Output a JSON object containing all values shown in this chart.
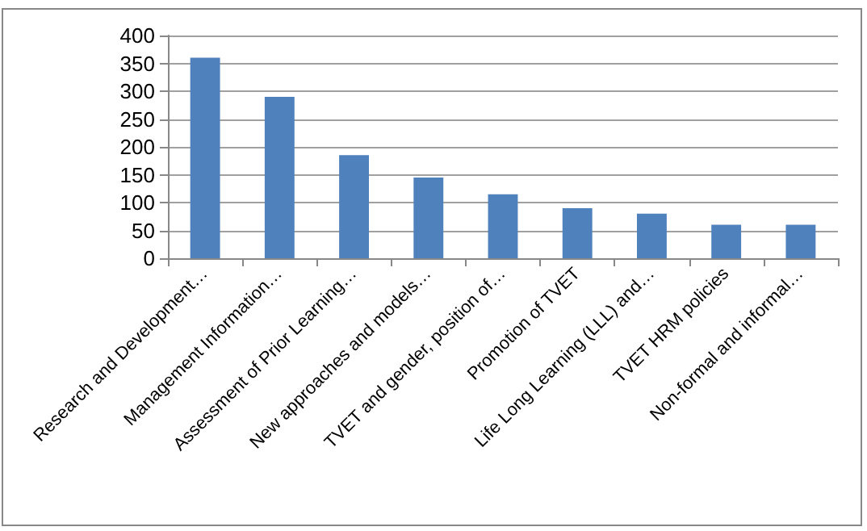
{
  "chart_data": {
    "type": "bar",
    "categories": [
      "Research and Development…",
      "Management Information…",
      "Assessment of Prior Learning…",
      "New approaches and models…",
      "TVET and gender, position of…",
      "Promotion of TVET",
      "Life Long Learning (LLL) and…",
      "TVET HRM policies",
      "Non-formal and informal…"
    ],
    "values": [
      360,
      290,
      185,
      145,
      115,
      90,
      80,
      60,
      60
    ],
    "color": "#4f81bd",
    "ylim": [
      0,
      400
    ],
    "yticks": [
      0,
      50,
      100,
      150,
      200,
      250,
      300,
      350,
      400
    ],
    "grid": "y"
  }
}
